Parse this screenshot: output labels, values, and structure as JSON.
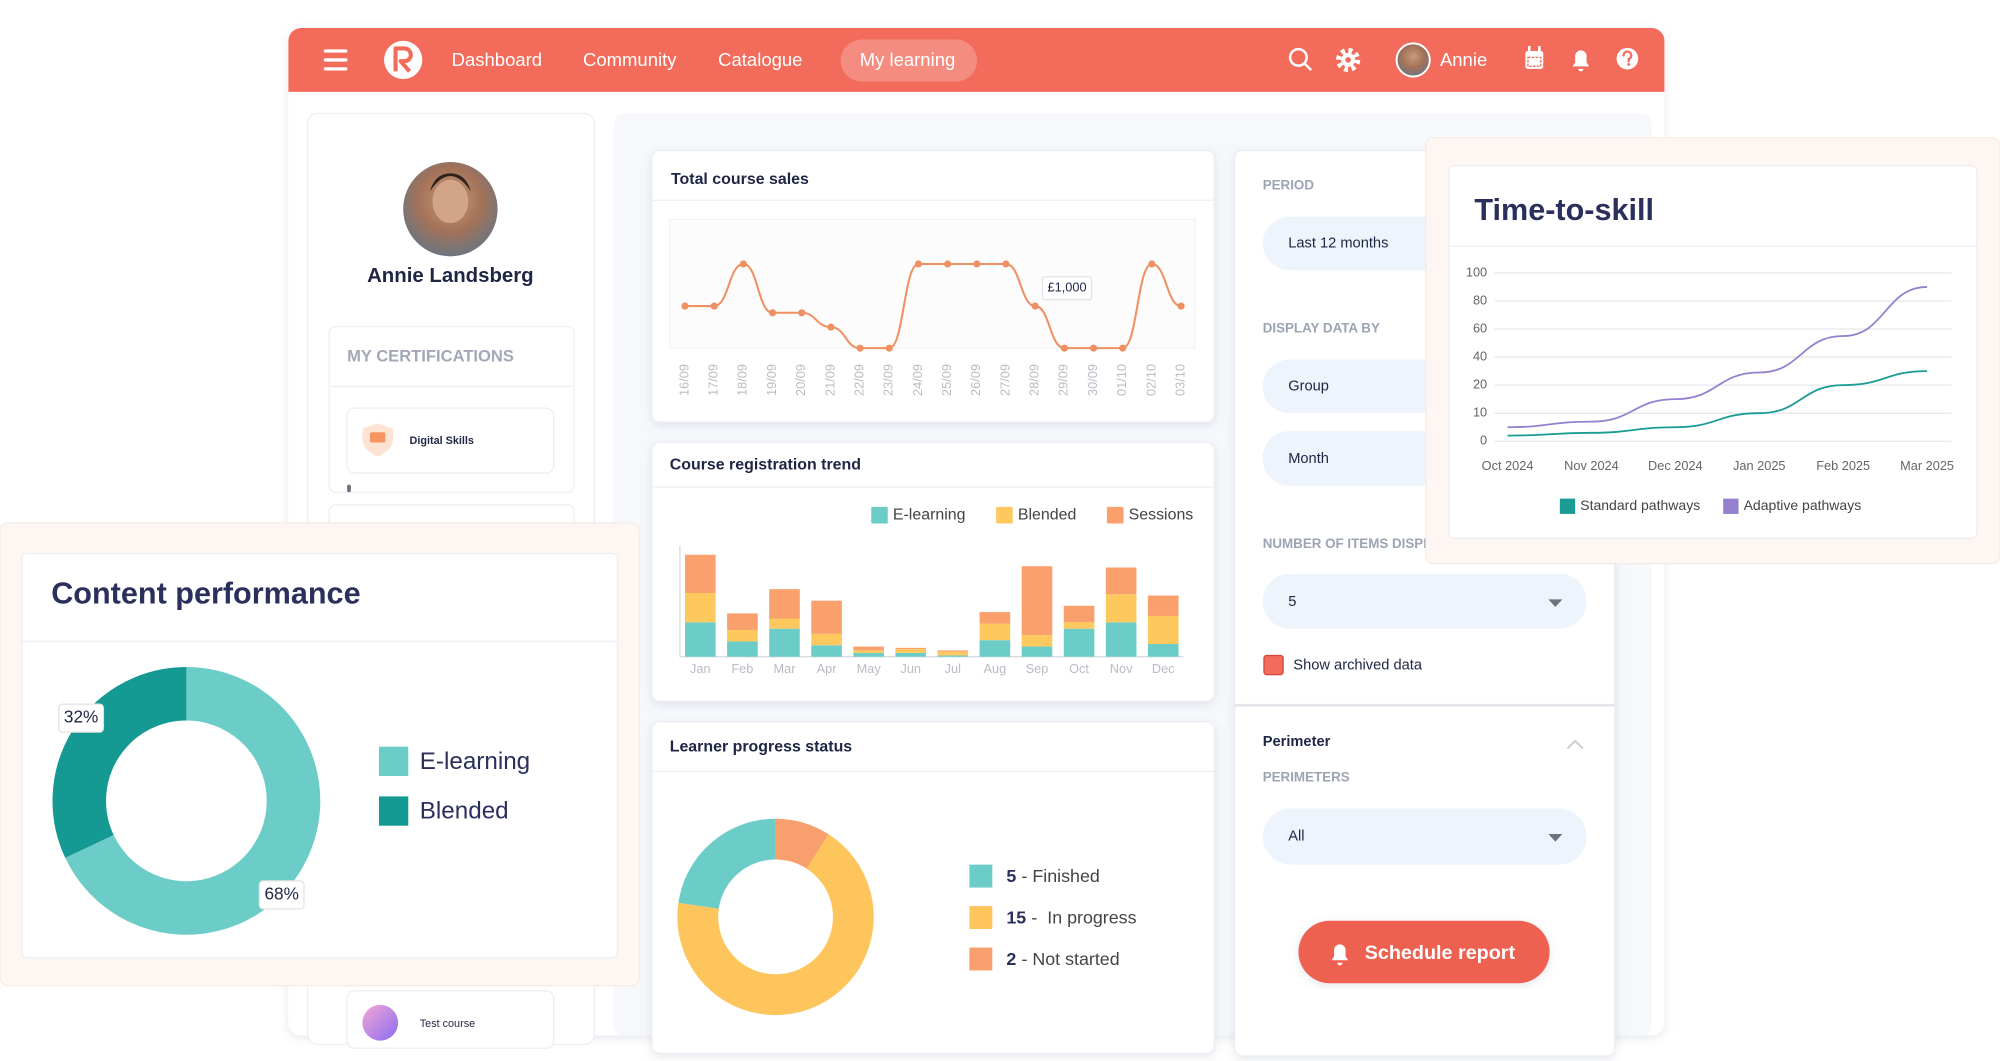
{
  "nav": {
    "items": [
      "Dashboard",
      "Community",
      "Catalogue",
      "My learning"
    ],
    "user": "Annie"
  },
  "profile": {
    "name": "Annie Landsberg",
    "certifications_title": "MY CERTIFICATIONS",
    "certifications": [
      "Digital Skills"
    ],
    "courses": [
      "Test course"
    ]
  },
  "filters": {
    "period_label": "PERIOD",
    "period": "Last 12 months",
    "display_label": "DISPLAY DATA BY",
    "display": [
      "Group",
      "Month"
    ],
    "items_label": "NUMBER OF ITEMS DISPLAYED",
    "items": 5,
    "archived": "Show archived data",
    "perimeter_title": "Perimeter",
    "perimeters_label": "PERIMETERS",
    "perimeters": "All",
    "schedule": "Schedule report"
  },
  "chart_data": [
    {
      "type": "line",
      "title": "Total course sales",
      "categories": [
        "16/09",
        "17/09",
        "18/09",
        "19/09",
        "20/09",
        "21/09",
        "22/09",
        "23/09",
        "24/09",
        "25/09",
        "26/09",
        "27/09",
        "28/09",
        "29/09",
        "30/09",
        "01/10",
        "02/10",
        "03/10"
      ],
      "values": [
        1000,
        1000,
        1500,
        920,
        920,
        750,
        500,
        500,
        1500,
        1500,
        1500,
        1500,
        1000,
        500,
        500,
        500,
        1500,
        1000
      ],
      "value_labels": [
        null,
        null,
        null,
        null,
        null,
        null,
        null,
        null,
        null,
        null,
        null,
        null,
        "£1,000",
        null,
        null,
        null,
        null,
        null
      ],
      "color": "#ef9062"
    },
    {
      "type": "bar",
      "stacked": true,
      "title": "Course registration trend",
      "categories": [
        "Jan",
        "Feb",
        "Mar",
        "Apr",
        "May",
        "Jun",
        "Jul",
        "Aug",
        "Sep",
        "Oct",
        "Nov",
        "Dec"
      ],
      "series": [
        {
          "name": "E-learning",
          "color": "#6ccdc8",
          "values": [
            27,
            12,
            22,
            9,
            3,
            3,
            1,
            13,
            8,
            22,
            27,
            10
          ]
        },
        {
          "name": "Blended",
          "color": "#fdc95e",
          "values": [
            23,
            9,
            8,
            9,
            2,
            3,
            3,
            13,
            9,
            5,
            22,
            22
          ]
        },
        {
          "name": "Sessions",
          "color": "#f9a06c",
          "values": [
            30,
            13,
            23,
            26,
            3,
            1,
            1,
            9,
            54,
            13,
            21,
            16
          ]
        }
      ]
    },
    {
      "type": "donut",
      "title": "Learner progress status",
      "categories": [
        "- Finished",
        "-  In progress",
        "- Not started"
      ],
      "values": [
        5,
        15,
        2
      ],
      "colors": [
        "#6ccdc8",
        "#fec55c",
        "#f8a06d"
      ]
    },
    {
      "type": "line",
      "title": "Time-to-skill",
      "categories": [
        "Oct 2024",
        "Nov 2024",
        "Dec 2024",
        "Jan 2025",
        "Feb 2025",
        "Mar 2025"
      ],
      "ylim": [
        0,
        100
      ],
      "yticks": [
        0,
        10,
        20,
        40,
        60,
        80,
        100
      ],
      "grid": true,
      "series": [
        {
          "name": "Standard pathways",
          "color": "#1a9c94",
          "values": [
            2,
            3,
            5,
            10,
            20,
            30
          ]
        },
        {
          "name": "Adaptive pathways",
          "color": "#9580cf",
          "values": [
            5,
            7,
            15,
            29,
            55,
            90
          ]
        }
      ]
    },
    {
      "type": "donut",
      "title": "Content performance",
      "categories": [
        "E-learning",
        "Blended"
      ],
      "values": [
        68,
        32
      ],
      "value_labels": [
        "68%",
        "32%"
      ],
      "colors": [
        "#6ccdc8",
        "#149a92"
      ]
    }
  ]
}
